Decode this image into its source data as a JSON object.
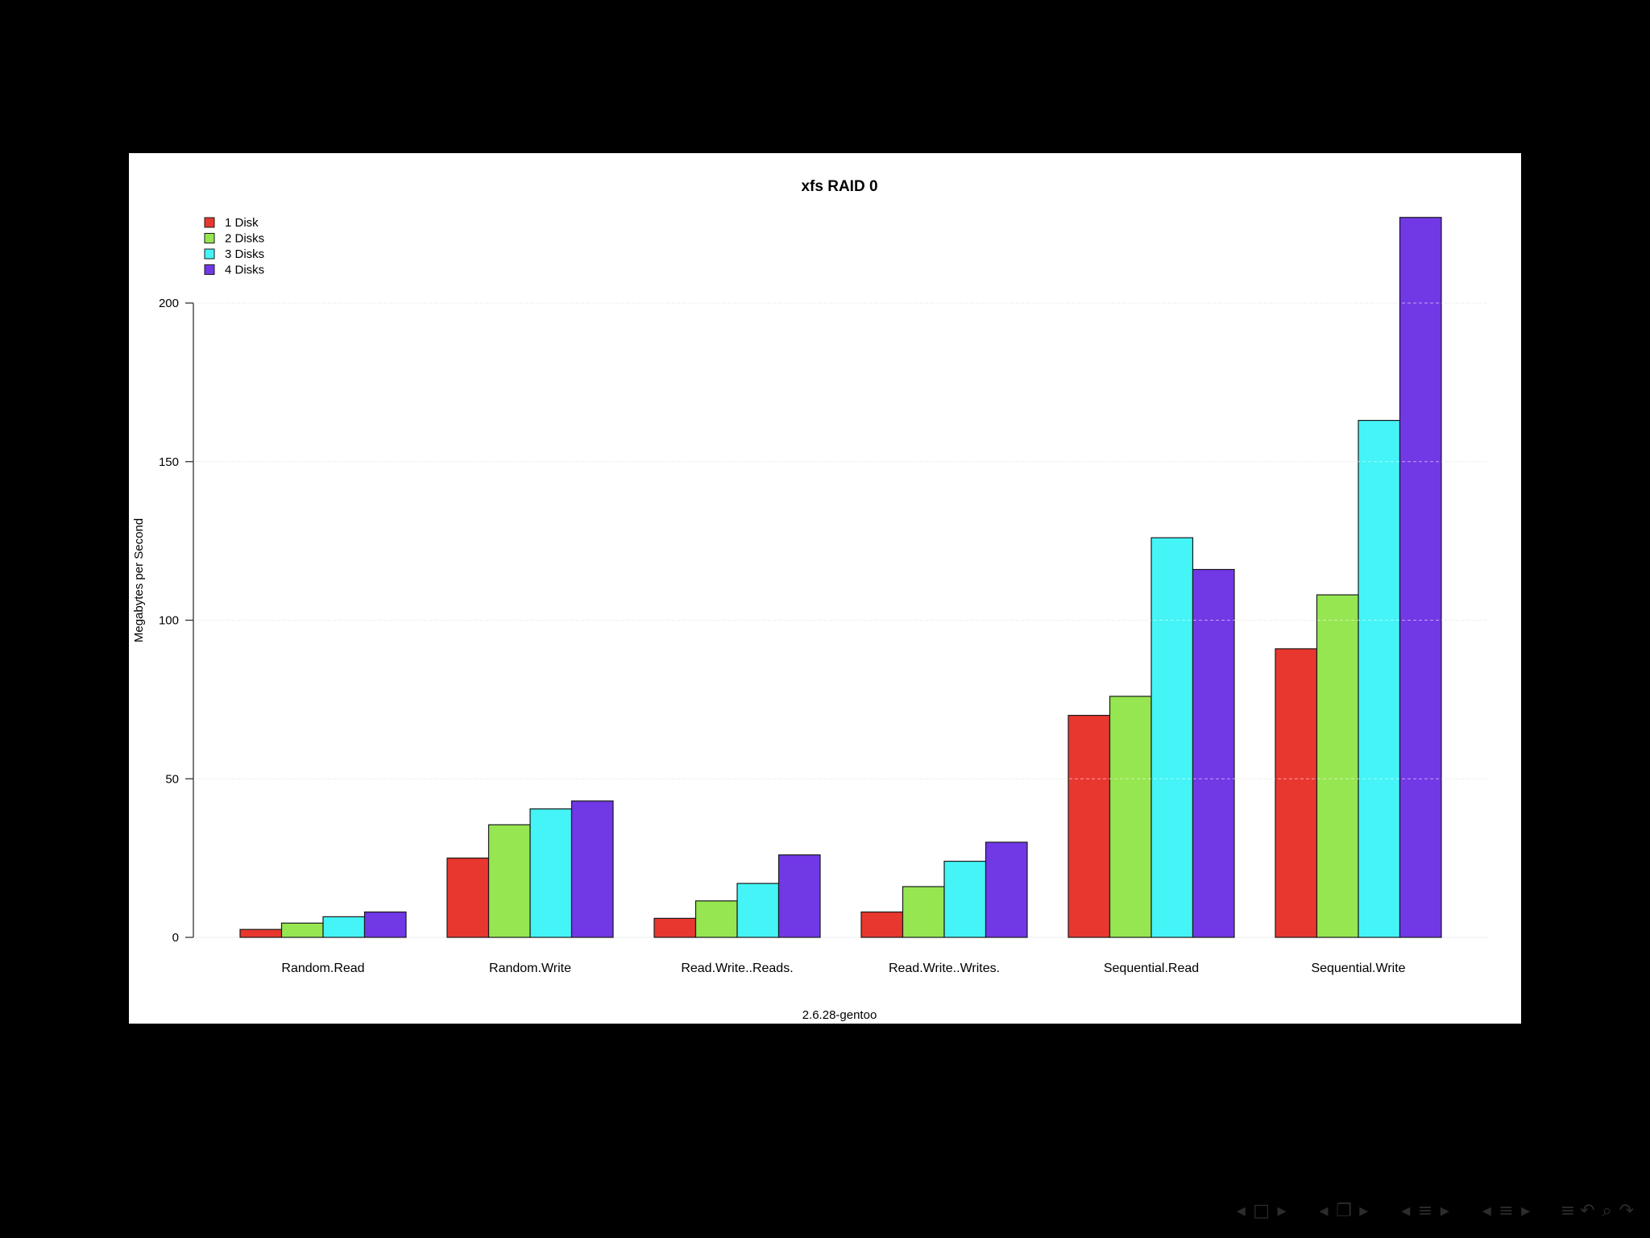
{
  "chart_data": {
    "type": "bar",
    "title": "xfs RAID 0",
    "xlabel": "2.6.28-gentoo",
    "ylabel": "Megabytes per Second",
    "ylim": [
      0,
      227
    ],
    "yticks": [
      0,
      50,
      100,
      150,
      200
    ],
    "grid": true,
    "legend_position": "top-left",
    "categories": [
      "Random.Read",
      "Random.Write",
      "Read.Write..Reads.",
      "Read.Write..Writes.",
      "Sequential.Read",
      "Sequential.Write"
    ],
    "series": [
      {
        "name": "1 Disk",
        "color": "#e8372f",
        "values": [
          2.5,
          25,
          6,
          8,
          70,
          91
        ]
      },
      {
        "name": "2 Disks",
        "color": "#95e650",
        "values": [
          4.5,
          35.5,
          11.5,
          16,
          76,
          108
        ]
      },
      {
        "name": "3 Disks",
        "color": "#44f4f6",
        "values": [
          6.5,
          40.5,
          17,
          24,
          126,
          163
        ]
      },
      {
        "name": "4 Disks",
        "color": "#7138e6",
        "values": [
          8,
          43,
          26,
          30,
          116,
          227
        ]
      }
    ]
  },
  "nav": {
    "icons": [
      "triangle-left-icon",
      "frame-icon",
      "triangle-right-icon",
      "triangle-left-icon",
      "subsection-icon",
      "triangle-right-icon",
      "triangle-left-icon",
      "section-icon",
      "triangle-right-icon",
      "triangle-left-icon",
      "section-icon",
      "triangle-right-icon",
      "menu-icon",
      "back-icon",
      "search-icon",
      "forward-icon"
    ]
  }
}
